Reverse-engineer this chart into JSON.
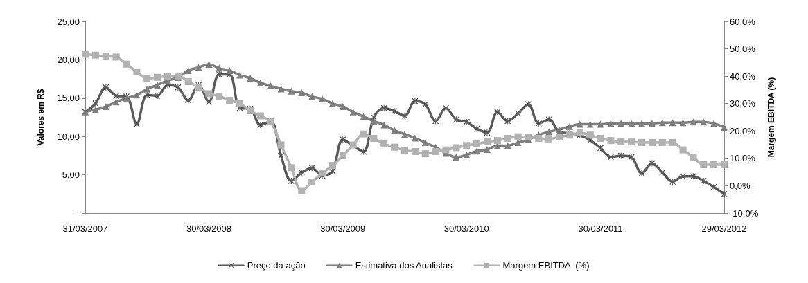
{
  "chart_data": {
    "type": "line",
    "ylabel": "Valores em R$",
    "y2label": "Margem EBITDA (%)",
    "categories": [
      "31/03/2007",
      null,
      null,
      null,
      null,
      null,
      null,
      null,
      null,
      null,
      null,
      null,
      "30/03/2008",
      null,
      null,
      null,
      null,
      null,
      null,
      null,
      null,
      null,
      null,
      null,
      null,
      "30/03/2009",
      null,
      null,
      null,
      null,
      null,
      null,
      null,
      null,
      null,
      null,
      null,
      "30/03/2010",
      null,
      null,
      null,
      null,
      null,
      null,
      null,
      null,
      null,
      null,
      null,
      null,
      "30/03/2011",
      null,
      null,
      null,
      null,
      null,
      null,
      null,
      null,
      null,
      null,
      null,
      "29/03/2012"
    ],
    "series": [
      {
        "name": "Preço da ação",
        "color": "#595959",
        "marker": "cross",
        "values": [
          13.2,
          14.3,
          16.4,
          15.3,
          15.2,
          11.6,
          15.4,
          15.3,
          16.7,
          16.4,
          14.7,
          16.7,
          14.5,
          18.1,
          18.1,
          13.7,
          13.6,
          11.5,
          12.0,
          7.5,
          4.2,
          5.3,
          5.9,
          4.9,
          5.5,
          9.6,
          8.8,
          8.0,
          12.5,
          13.7,
          13.3,
          12.7,
          14.6,
          14.2,
          12.0,
          13.7,
          12.2,
          11.9,
          11.0,
          10.5,
          13.2,
          12.0,
          13.0,
          14.2,
          11.7,
          12.2,
          10.6,
          10.4,
          10.2,
          9.5,
          8.5,
          7.3,
          7.5,
          7.3,
          5.2,
          6.5,
          5.3,
          4.1,
          4.8,
          4.8,
          4.2,
          3.4,
          2.5
        ]
      },
      {
        "name": "Estimativa dos Analistas",
        "color": "#7f7f7f",
        "marker": "triangle",
        "values": [
          13.2,
          13.5,
          13.9,
          14.5,
          15.0,
          15.4,
          16.2,
          16.7,
          17.3,
          17.7,
          18.6,
          19.0,
          19.4,
          18.9,
          18.6,
          18.0,
          17.6,
          17.0,
          16.6,
          16.2,
          15.9,
          15.7,
          15.2,
          14.9,
          14.3,
          13.9,
          13.2,
          12.6,
          12.0,
          11.5,
          10.8,
          10.3,
          9.8,
          9.2,
          8.6,
          7.8,
          7.3,
          7.6,
          8.1,
          8.3,
          8.8,
          8.8,
          9.2,
          9.6,
          10.2,
          10.6,
          10.9,
          11.3,
          11.6,
          11.6,
          11.6,
          11.7,
          11.7,
          11.7,
          11.7,
          11.7,
          11.8,
          11.8,
          11.8,
          11.9,
          11.9,
          11.7,
          11.2
        ]
      },
      {
        "name": "Margem EBITDA  (%)",
        "color": "#b2b2b2",
        "marker": "square",
        "axis": "y2",
        "values": [
          48.0,
          47.7,
          47.3,
          47.0,
          44.4,
          41.6,
          39.2,
          39.6,
          40.0,
          40.1,
          38.0,
          36.0,
          33.6,
          32.7,
          31.2,
          30.1,
          27.4,
          25.5,
          23.3,
          14.9,
          6.6,
          -1.8,
          1.4,
          4.6,
          7.4,
          11.0,
          14.9,
          18.9,
          17.3,
          15.3,
          14.1,
          12.9,
          12.5,
          11.7,
          12.5,
          13.1,
          13.9,
          14.7,
          15.3,
          16.1,
          16.5,
          17.3,
          17.9,
          17.8,
          17.3,
          17.1,
          17.8,
          18.5,
          19.3,
          18.5,
          17.3,
          16.5,
          16.1,
          16.0,
          15.8,
          15.8,
          15.8,
          15.8,
          13.1,
          10.5,
          7.7,
          7.7,
          7.7
        ]
      }
    ],
    "ylim": [
      0,
      25
    ],
    "yticks": [
      {
        "value": 0,
        "label": "-"
      },
      {
        "value": 5,
        "label": "5,00"
      },
      {
        "value": 10,
        "label": "10,00"
      },
      {
        "value": 15,
        "label": "15,00"
      },
      {
        "value": 20,
        "label": "20,00"
      },
      {
        "value": 25,
        "label": "25,00"
      }
    ],
    "y2lim": [
      -10,
      60
    ],
    "y2ticks": [
      {
        "value": -10,
        "label": "-10,0%"
      },
      {
        "value": 0,
        "label": "0,0%"
      },
      {
        "value": 10,
        "label": "10,0%"
      },
      {
        "value": 20,
        "label": "20,0%"
      },
      {
        "value": 30,
        "label": "30,0%"
      },
      {
        "value": 40,
        "label": "40,0%"
      },
      {
        "value": 50,
        "label": "50,0%"
      },
      {
        "value": 60,
        "label": "60,0%"
      }
    ],
    "grid": false,
    "legend": "bottom"
  }
}
